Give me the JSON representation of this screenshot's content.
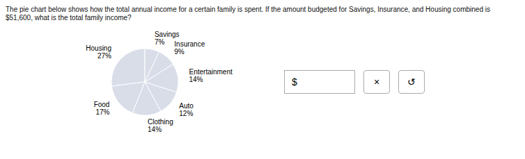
{
  "chart_data": {
    "type": "pie",
    "title": "The pie chart below shows how the total annual income for a certain family is spent. If the amount budgeted for Savings, Insurance, and Housing combined is",
    "subtitle": "$51,600, what is the total family income?",
    "categories": [
      "Housing",
      "Food",
      "Clothing",
      "Auto",
      "Entertainment",
      "Insurance",
      "Savings"
    ],
    "values": [
      27,
      17,
      14,
      12,
      14,
      9,
      7
    ],
    "value_labels": [
      "27%",
      "17%",
      "14%",
      "12%",
      "14%",
      "9%",
      "7%"
    ],
    "color": "#d8dde8",
    "annotations": [
      "$",
      "×",
      "↺"
    ]
  }
}
